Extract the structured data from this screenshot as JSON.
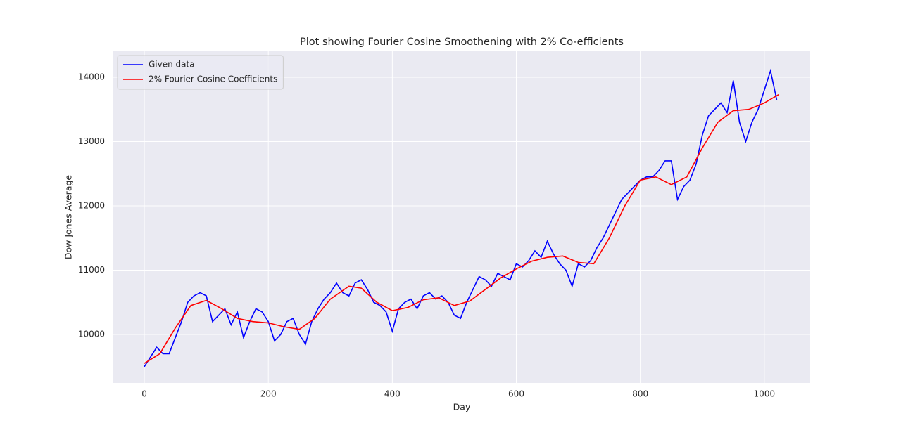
{
  "chart_data": {
    "type": "line",
    "title": "Plot showing Fourier Cosine Smoothening with 2% Co-efficients",
    "x_label": "Day",
    "y_label": "Dow Jones Average",
    "xlim": [
      -50,
      1074
    ],
    "ylim": [
      9246,
      14404
    ],
    "xticks": [
      0,
      200,
      400,
      600,
      800,
      1000
    ],
    "yticks": [
      10000,
      11000,
      12000,
      13000,
      14000
    ],
    "grid": true,
    "legend": "upper left",
    "series": [
      {
        "name": "Given data",
        "color": "#0000ff",
        "x": [
          0,
          10,
          20,
          30,
          40,
          50,
          60,
          70,
          80,
          90,
          100,
          110,
          120,
          130,
          140,
          150,
          160,
          170,
          180,
          190,
          200,
          210,
          220,
          230,
          240,
          250,
          260,
          270,
          280,
          290,
          300,
          310,
          320,
          330,
          340,
          350,
          360,
          370,
          380,
          390,
          400,
          410,
          420,
          430,
          440,
          450,
          460,
          470,
          480,
          490,
          500,
          510,
          520,
          530,
          540,
          550,
          560,
          570,
          580,
          590,
          600,
          610,
          620,
          630,
          640,
          650,
          660,
          670,
          680,
          690,
          700,
          710,
          720,
          730,
          740,
          750,
          760,
          770,
          780,
          790,
          800,
          810,
          820,
          830,
          840,
          850,
          860,
          870,
          880,
          890,
          900,
          910,
          920,
          930,
          940,
          950,
          960,
          970,
          980,
          990,
          1000,
          1010,
          1020
        ],
        "values": [
          9500,
          9650,
          9800,
          9700,
          9700,
          9950,
          10200,
          10500,
          10600,
          10650,
          10600,
          10200,
          10300,
          10400,
          10150,
          10350,
          9950,
          10200,
          10400,
          10350,
          10200,
          9900,
          10000,
          10200,
          10250,
          10000,
          9850,
          10200,
          10400,
          10550,
          10650,
          10800,
          10650,
          10600,
          10800,
          10850,
          10700,
          10500,
          10450,
          10350,
          10050,
          10400,
          10500,
          10550,
          10400,
          10600,
          10650,
          10550,
          10600,
          10500,
          10300,
          10250,
          10500,
          10700,
          10900,
          10850,
          10750,
          10950,
          10900,
          10850,
          11100,
          11050,
          11150,
          11300,
          11200,
          11450,
          11250,
          11100,
          11000,
          10750,
          11100,
          11050,
          11150,
          11350,
          11500,
          11700,
          11900,
          12100,
          12200,
          12300,
          12400,
          12450,
          12450,
          12550,
          12700,
          12700,
          12100,
          12300,
          12400,
          12650,
          13100,
          13400,
          13500,
          13600,
          13450,
          13950,
          13300,
          13000,
          13300,
          13500,
          13800,
          14100,
          13650
        ]
      },
      {
        "name": "2% Fourier Cosine Coefficients",
        "color": "#ff0000",
        "x": [
          0,
          25,
          50,
          75,
          100,
          125,
          150,
          175,
          200,
          225,
          250,
          275,
          300,
          330,
          350,
          375,
          400,
          425,
          450,
          475,
          500,
          525,
          550,
          575,
          600,
          625,
          650,
          675,
          700,
          725,
          750,
          775,
          800,
          825,
          850,
          875,
          900,
          925,
          950,
          975,
          1000,
          1023
        ],
        "values": [
          9550,
          9700,
          10100,
          10450,
          10530,
          10400,
          10250,
          10200,
          10180,
          10120,
          10080,
          10250,
          10550,
          10750,
          10720,
          10500,
          10370,
          10420,
          10540,
          10570,
          10450,
          10520,
          10700,
          10880,
          11020,
          11140,
          11200,
          11220,
          11120,
          11100,
          11500,
          12000,
          12400,
          12450,
          12330,
          12450,
          12900,
          13300,
          13480,
          13500,
          13600,
          13730
        ]
      }
    ]
  }
}
